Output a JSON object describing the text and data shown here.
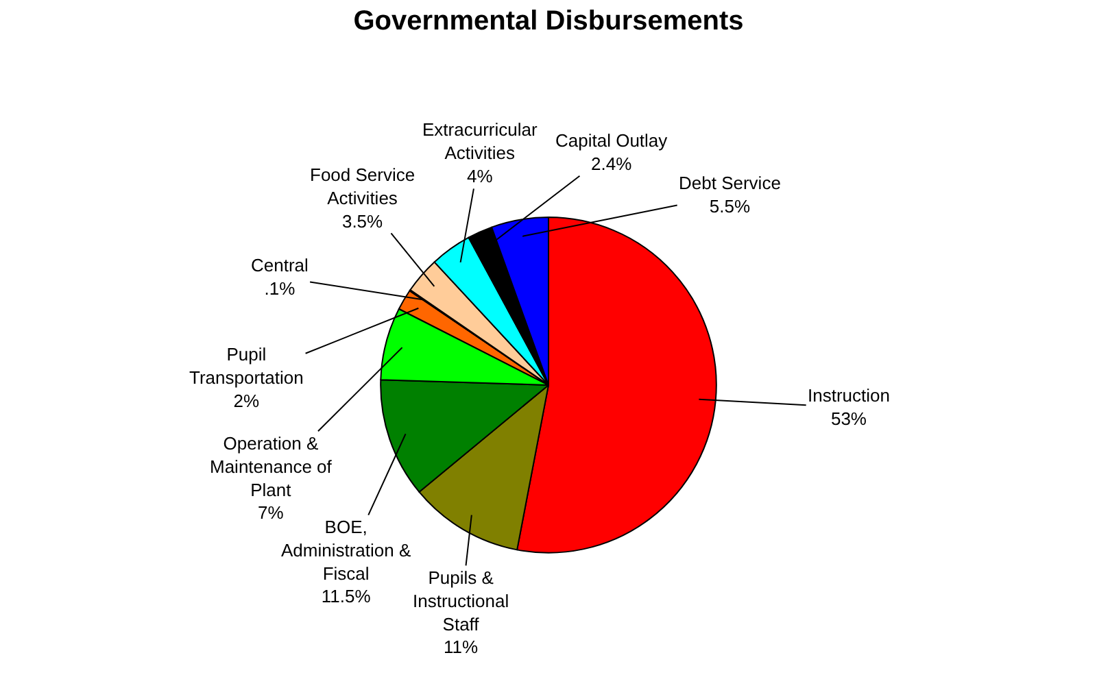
{
  "chart_data": {
    "type": "pie",
    "title": "Governmental Disbursements",
    "categories": [
      "Instruction",
      "Pupils & Instructional Staff",
      "BOE, Administration & Fiscal",
      "Operation & Maintenance of Plant",
      "Pupil Transportation",
      "Central",
      "Food Service Activities",
      "Extracurricular Activities",
      "Capital Outlay",
      "Debt Service"
    ],
    "values": [
      53,
      11,
      11.5,
      7,
      2,
      0.1,
      3.5,
      4,
      2.4,
      5.5
    ],
    "value_labels": [
      "53%",
      "11%",
      "11.5%",
      "7%",
      "2%",
      ".1%",
      "3.5%",
      "4%",
      "2.4%",
      "5.5%"
    ],
    "colors": [
      "#ff0000",
      "#808000",
      "#008000",
      "#00ff00",
      "#ff6600",
      "#333333",
      "#ffcc99",
      "#00ffff",
      "#000000",
      "#0000ff"
    ],
    "legend": false
  }
}
